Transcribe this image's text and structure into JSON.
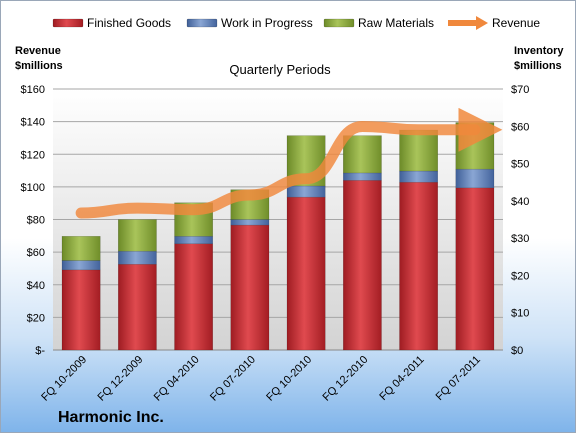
{
  "chart_data": {
    "type": "bar",
    "stacked": true,
    "title": "Quarterly Periods",
    "company": "Harmonic Inc.",
    "left_axis_title": [
      "Revenue",
      "$millions"
    ],
    "right_axis_title": [
      "Inventory",
      "$millions"
    ],
    "categories": [
      "FQ 10-2009",
      "FQ 12-2009",
      "FQ 04-2010",
      "FQ 07-2010",
      "FQ 10-2010",
      "FQ 12-2010",
      "FQ 04-2011",
      "FQ 07-2011"
    ],
    "left_ticks": [
      "$-",
      "$20",
      "$40",
      "$60",
      "$80",
      "$100",
      "$120",
      "$140",
      "$160"
    ],
    "right_ticks": [
      "$0",
      "$10",
      "$20",
      "$30",
      "$40",
      "$50",
      "$60",
      "$70"
    ],
    "left_ylim": [
      0,
      160
    ],
    "right_ylim": [
      0,
      70
    ],
    "grid": true,
    "legend_position": "top",
    "series": [
      {
        "name": "Finished Goods",
        "axis": "right",
        "color": "#c0272d",
        "values": [
          21.5,
          23,
          28.5,
          33.5,
          41,
          45.5,
          45,
          43.5
        ]
      },
      {
        "name": "Work in Progress",
        "axis": "right",
        "color": "#5b7db8",
        "values": [
          2.5,
          3.5,
          2,
          1.5,
          3,
          2,
          3,
          5
        ]
      },
      {
        "name": "Raw Materials",
        "axis": "right",
        "color": "#8aab3c",
        "values": [
          6.5,
          8.5,
          9,
          8,
          13.5,
          10,
          11,
          12.5
        ]
      },
      {
        "name": "Revenue",
        "axis": "left",
        "color": "#f0883c",
        "type": "line",
        "values": [
          84,
          87,
          86,
          95,
          105,
          137,
          135,
          135
        ]
      }
    ]
  }
}
